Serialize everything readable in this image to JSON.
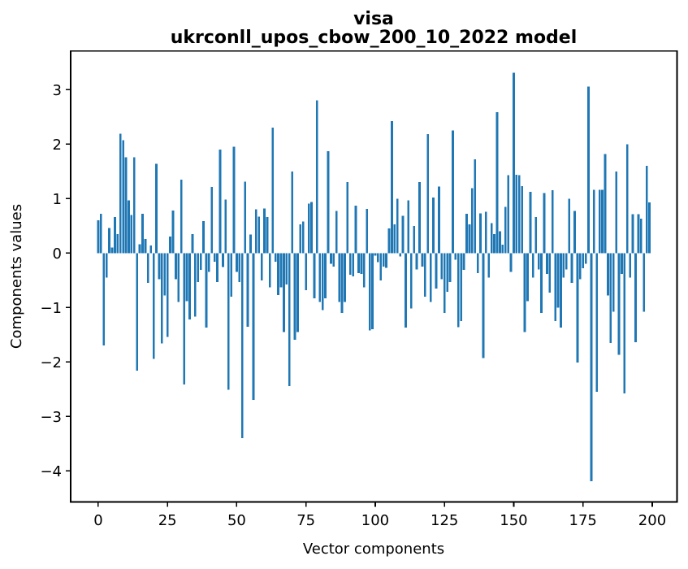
{
  "figure": {
    "title_line1": "visa",
    "title_line2": "ukrconll_upos_cbow_200_10_2022 model"
  },
  "chart_data": {
    "type": "bar",
    "title": "visa\nukrconll_upos_cbow_200_10_2022 model",
    "xlabel": "Vector components",
    "ylabel": "Components values",
    "bar_color": "#1f77b4",
    "n_bars": 200,
    "x_start": 0,
    "xticks": [
      0,
      25,
      50,
      75,
      100,
      125,
      150,
      175,
      200
    ],
    "yticks": [
      3,
      2,
      1,
      0,
      -1,
      -2,
      -3,
      -4
    ],
    "xlim": [
      -9.95,
      208.95
    ],
    "ylim": [
      -4.57,
      3.71
    ],
    "grid": false,
    "legend": null,
    "values": [
      0.6,
      0.72,
      -1.7,
      -0.45,
      0.46,
      0.1,
      0.66,
      0.35,
      2.19,
      2.07,
      1.76,
      0.97,
      0.7,
      1.76,
      -2.16,
      0.16,
      0.72,
      0.26,
      -0.55,
      0.14,
      -1.94,
      1.64,
      -0.48,
      -1.66,
      -0.78,
      -1.54,
      0.3,
      0.78,
      -0.48,
      -0.9,
      1.35,
      -2.41,
      -0.88,
      -1.22,
      0.35,
      -1.17,
      -0.53,
      -0.31,
      0.59,
      -1.37,
      -0.35,
      1.21,
      -0.16,
      -0.53,
      1.9,
      -0.26,
      0.98,
      -2.51,
      -0.8,
      1.95,
      -0.35,
      -0.53,
      -3.4,
      1.31,
      -1.35,
      0.34,
      -2.7,
      0.8,
      0.67,
      -0.5,
      0.82,
      0.66,
      -0.63,
      2.3,
      -0.16,
      -0.77,
      -0.63,
      -1.45,
      -0.58,
      -2.44,
      1.5,
      -1.59,
      -1.45,
      0.53,
      0.58,
      -0.68,
      0.91,
      0.94,
      -0.83,
      2.8,
      -0.9,
      -1.05,
      -0.83,
      1.87,
      -0.2,
      -0.25,
      0.77,
      -0.9,
      -1.1,
      -0.9,
      1.3,
      -0.4,
      -0.43,
      0.87,
      -0.37,
      -0.38,
      -0.63,
      0.81,
      -1.42,
      -1.4,
      -0.05,
      -0.17,
      -0.5,
      -0.25,
      -0.27,
      0.45,
      2.42,
      0.53,
      1.0,
      -0.06,
      0.68,
      -1.37,
      0.97,
      -1.02,
      0.5,
      -0.3,
      1.3,
      -0.25,
      -0.8,
      2.18,
      -0.9,
      1.02,
      -0.65,
      1.22,
      -0.48,
      -1.1,
      -0.71,
      -0.53,
      2.25,
      -0.12,
      -1.36,
      -1.25,
      -0.31,
      0.72,
      0.53,
      1.19,
      1.72,
      -0.37,
      0.73,
      -1.93,
      0.76,
      -0.45,
      0.55,
      0.35,
      2.59,
      0.4,
      0.15,
      0.85,
      1.43,
      -0.35,
      3.31,
      1.44,
      1.43,
      1.23,
      -1.45,
      -0.88,
      1.12,
      -0.45,
      0.66,
      -0.3,
      -1.1,
      1.1,
      -0.38,
      -0.73,
      1.15,
      -1.25,
      -1.0,
      -1.37,
      -0.45,
      -0.3,
      1.0,
      -0.55,
      0.77,
      -2.01,
      -0.48,
      -0.28,
      -0.2,
      3.06,
      -4.19,
      1.16,
      -2.55,
      1.16,
      1.16,
      1.82,
      -0.78,
      -1.65,
      -1.08,
      1.5,
      -1.87,
      -0.38,
      -2.58,
      2.0,
      -0.45,
      0.71,
      -1.64,
      0.71,
      0.63,
      -1.08,
      1.6,
      0.93
    ]
  }
}
